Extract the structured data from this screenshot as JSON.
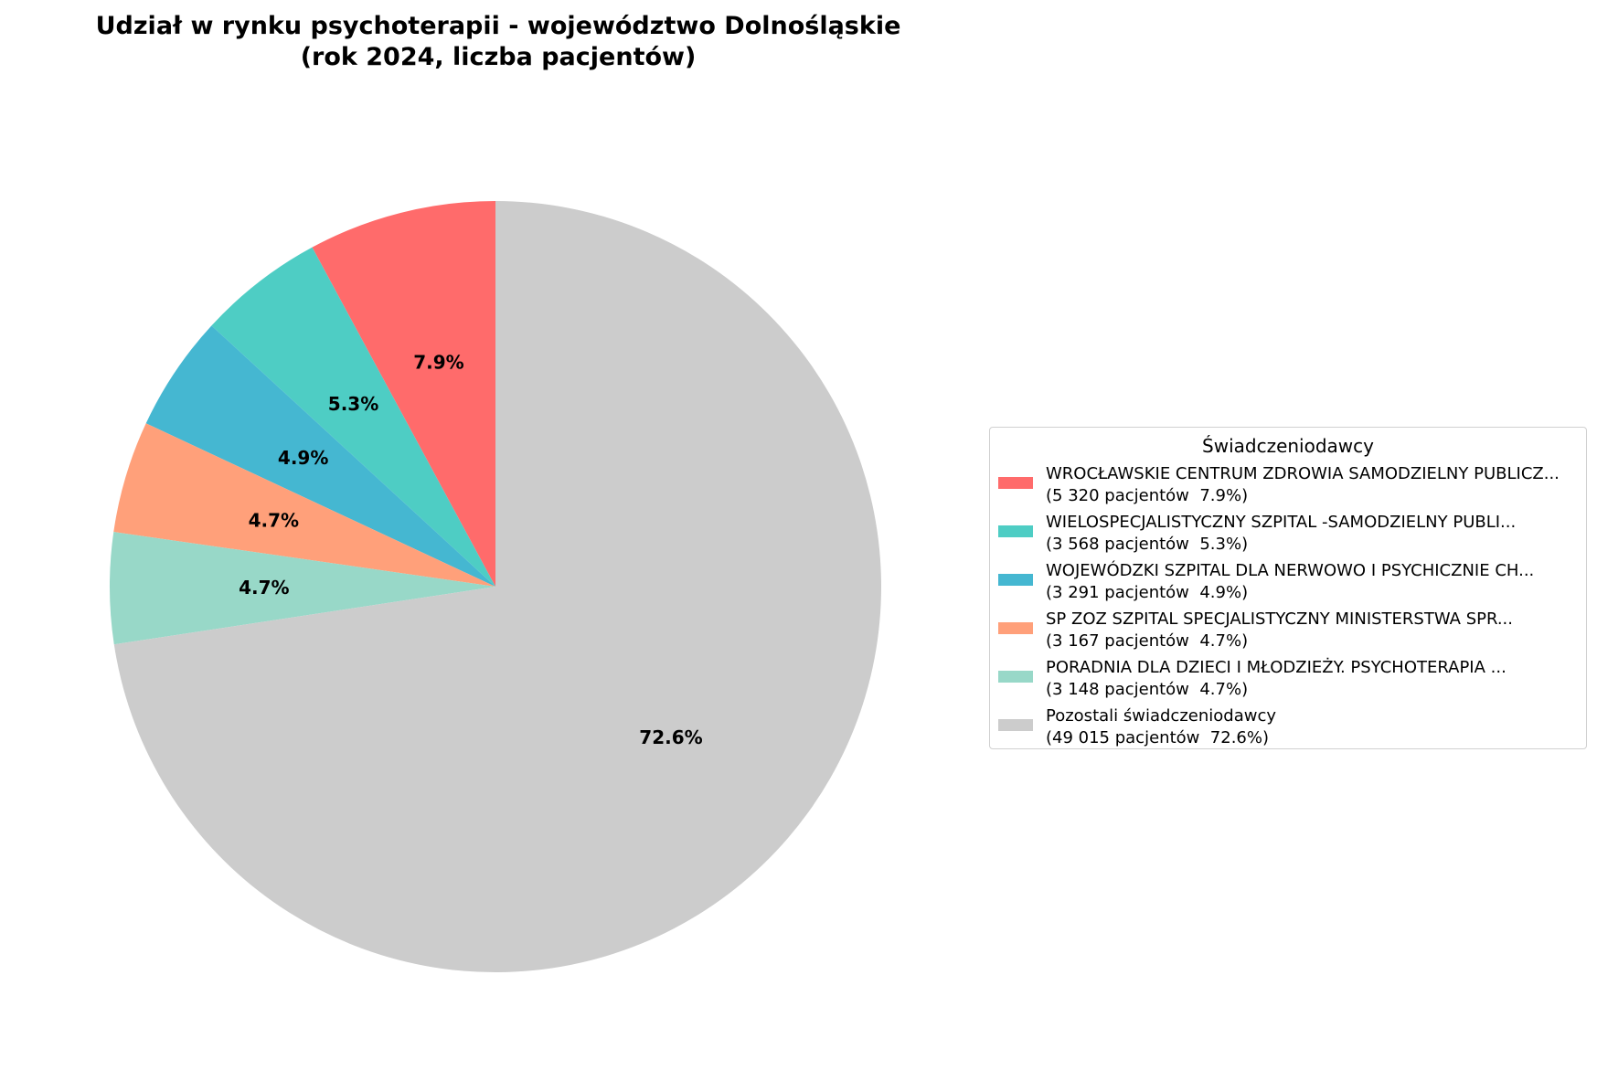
{
  "chart_data": {
    "type": "pie",
    "title_lines": [
      "Udział w rynku psychoterapii - województwo Dolnośląskie",
      "(rok 2024, liczba pacjentów)"
    ],
    "start_angle": "top, counterclockwise",
    "slices": [
      {
        "label": "WROCŁAWSKIE CENTRUM ZDROWIA SAMODZIELNY PUBLICZ...",
        "detail": "(5 320 pacjentów  7.9%)",
        "value": 5320,
        "pct_label": "7.9%",
        "color": "#ff6b6b"
      },
      {
        "label": "WIELOSPECJALISTYCZNY SZPITAL -SAMODZIELNY PUBLI...",
        "detail": "(3 568 pacjentów  5.3%)",
        "value": 3568,
        "pct_label": "5.3%",
        "color": "#4ecdc4"
      },
      {
        "label": "WOJEWÓDZKI SZPITAL DLA NERWOWO I PSYCHICZNIE CH...",
        "detail": "(3 291 pacjentów  4.9%)",
        "value": 3291,
        "pct_label": "4.9%",
        "color": "#45b7d1"
      },
      {
        "label": "SP ZOZ SZPITAL SPECJALISTYCZNY MINISTERSTWA SPR...",
        "detail": "(3 167 pacjentów  4.7%)",
        "value": 3167,
        "pct_label": "4.7%",
        "color": "#ffa07a"
      },
      {
        "label": "PORADNIA DLA DZIECI I MŁODZIEŻY. PSYCHOTERAPIA ...",
        "detail": "(3 148 pacjentów  4.7%)",
        "value": 3148,
        "pct_label": "4.7%",
        "color": "#98d8c8"
      },
      {
        "label": "Pozostali świadczeniodawcy",
        "detail": "(49 015 pacjentów  72.6%)",
        "value": 49015,
        "pct_label": "72.6%",
        "color": "#cccccc"
      }
    ],
    "legend": {
      "title": "Świadczeniodawcy",
      "placement": "right"
    }
  }
}
